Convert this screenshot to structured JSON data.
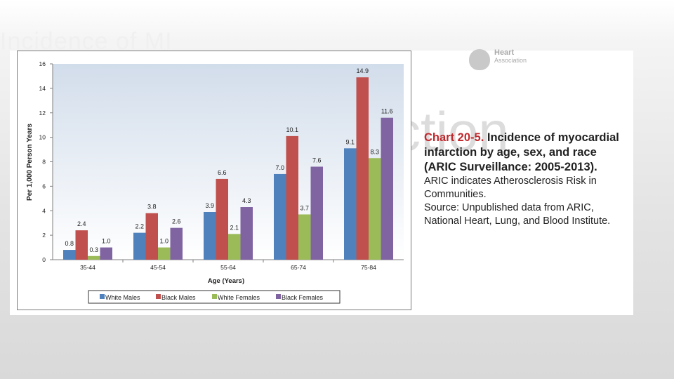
{
  "slide": {
    "title": "Incidence of MI"
  },
  "background_text": "ction",
  "logo": {
    "line1": "Heart",
    "line2": "Association"
  },
  "caption": {
    "chart_number": "Chart 20-5.",
    "title": " Incidence of myocardial infarction by age, sex, and race (ARIC Surveillance: 2005-2013).",
    "lines": [
      "ARIC indicates Atherosclerosis Risk in Communities.",
      "Source: Unpublished data from ARIC, National Heart, Lung, and Blood Institute."
    ]
  },
  "chart_data": {
    "type": "bar",
    "categories": [
      "35-44",
      "45-54",
      "55-64",
      "65-74",
      "75-84"
    ],
    "series": [
      {
        "name": "White Males",
        "values": [
          0.8,
          2.2,
          3.9,
          7.0,
          9.1
        ],
        "labels": [
          "0.8",
          "2.2",
          "3.9",
          "7.0",
          "9.1"
        ],
        "color": "#4f81bd"
      },
      {
        "name": "Black Males",
        "values": [
          2.4,
          3.8,
          6.6,
          10.1,
          14.9
        ],
        "labels": [
          "2.4",
          "3.8",
          "6.6",
          "10.1",
          "14.9"
        ],
        "color": "#c0504d"
      },
      {
        "name": "White Females",
        "values": [
          0.3,
          1.0,
          2.1,
          3.7,
          8.3
        ],
        "labels": [
          "0.3",
          "1.0",
          "2.1",
          "3.7",
          "8.3"
        ],
        "color": "#9bbb59"
      },
      {
        "name": "Black Females",
        "values": [
          1.0,
          2.6,
          4.3,
          7.6,
          11.6
        ],
        "labels": [
          "1.0",
          "2.6",
          "4.3",
          "7.6",
          "11.6"
        ],
        "color": "#8064a2"
      }
    ],
    "ylabel": "Per 1,000 Person Years",
    "xlabel": "Age (Years)",
    "ylim": [
      0,
      16
    ],
    "yticks": [
      0,
      2,
      4,
      6,
      8,
      10,
      12,
      14,
      16
    ],
    "grid": false,
    "legend": "bottom"
  }
}
